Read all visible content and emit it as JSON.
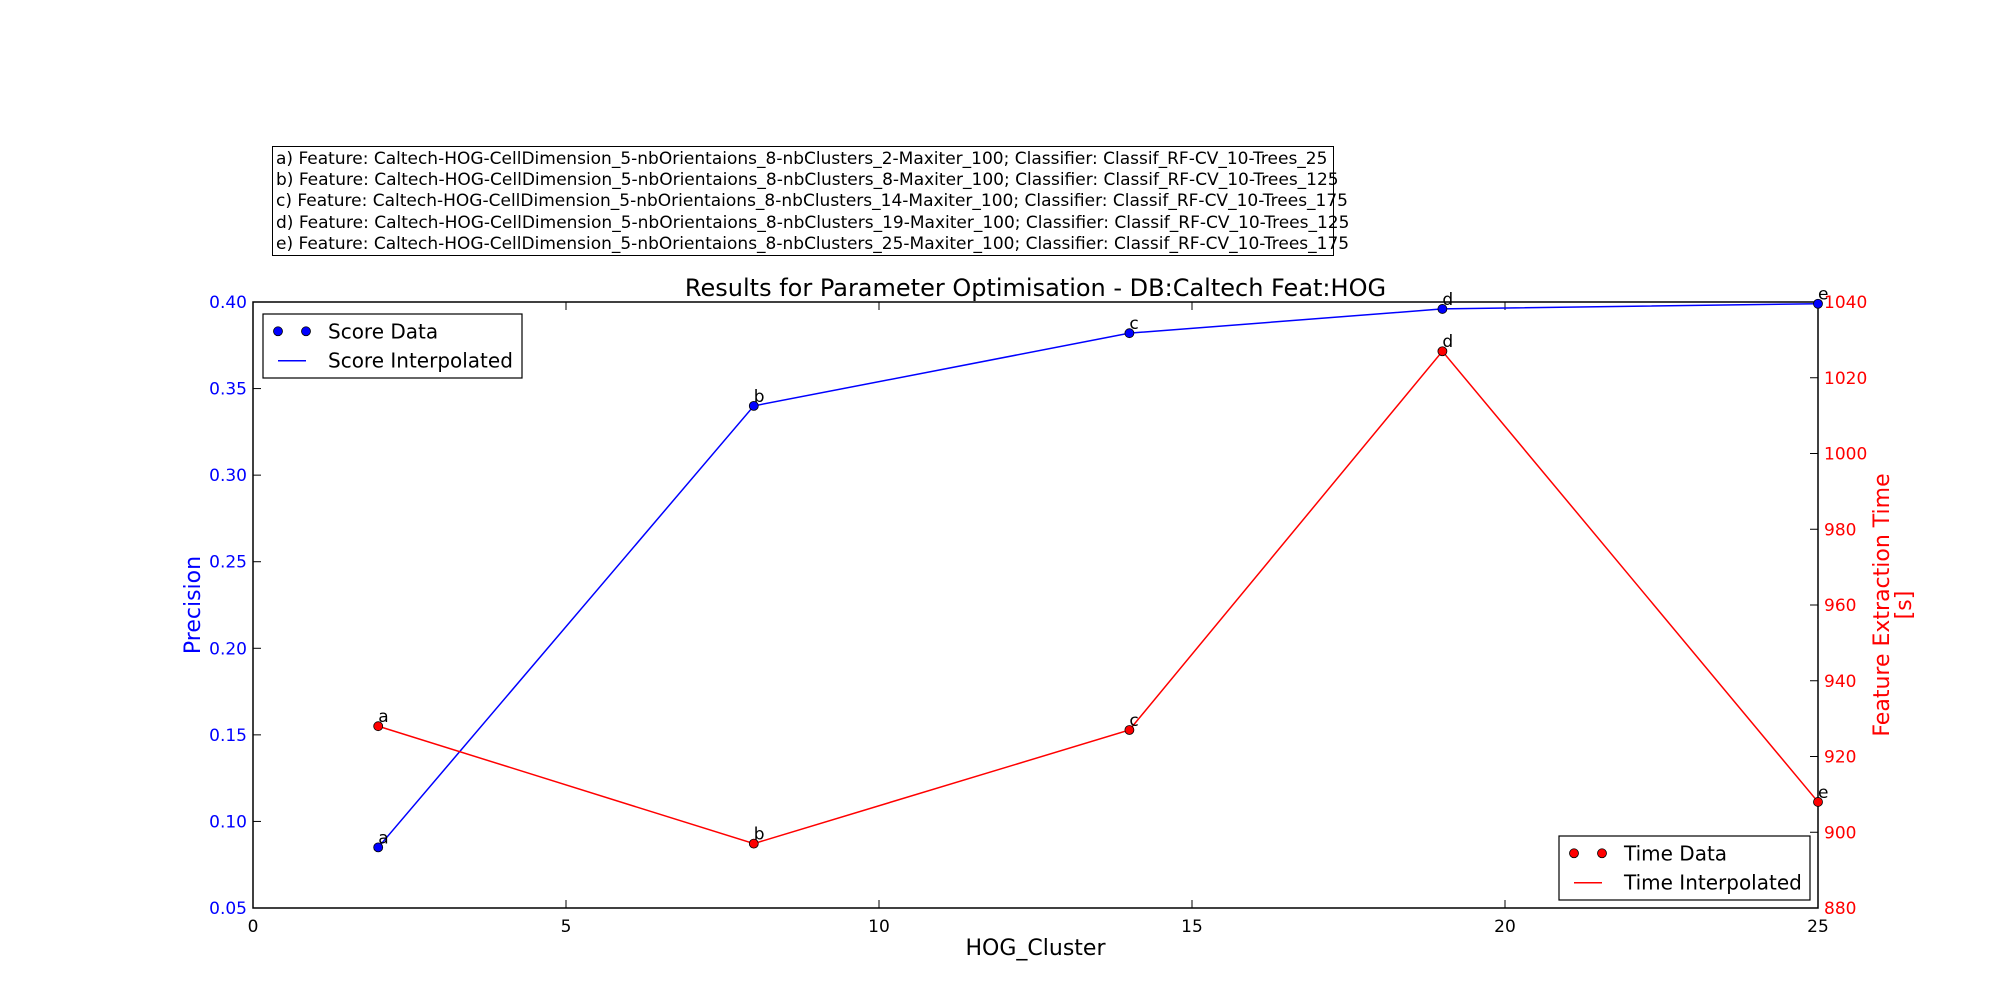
{
  "chart_data": {
    "type": "line",
    "title": "Results for Parameter Optimisation - DB:Caltech Feat:HOG",
    "xlabel": "HOG_Cluster",
    "ylabel_left": "Precision",
    "ylabel_right": "Feature Extraction Time [s]",
    "xlim": [
      0,
      25
    ],
    "ylim_left": [
      0.05,
      0.4
    ],
    "ylim_right": [
      880,
      1040
    ],
    "xticks": [
      "0",
      "5",
      "10",
      "15",
      "20",
      "25"
    ],
    "yticks_left": [
      "0.05",
      "0.10",
      "0.15",
      "0.20",
      "0.25",
      "0.30",
      "0.35",
      "0.40"
    ],
    "yticks_right": [
      "880",
      "900",
      "920",
      "940",
      "960",
      "980",
      "1000",
      "1020",
      "1040"
    ],
    "grid": false,
    "x": [
      2,
      8,
      14,
      19,
      25
    ],
    "point_labels": [
      "a",
      "b",
      "c",
      "d",
      "e"
    ],
    "series": [
      {
        "name": "Score",
        "axis": "left",
        "values": [
          0.085,
          0.34,
          0.382,
          0.396,
          0.399
        ],
        "color": "#0000ff"
      },
      {
        "name": "Time",
        "axis": "right",
        "values": [
          928,
          897,
          927,
          1027,
          908
        ],
        "color": "#ff0000"
      }
    ],
    "legends": [
      {
        "location": "upper left",
        "entries": [
          "Score Data",
          "Score Interpolated"
        ]
      },
      {
        "location": "lower right",
        "entries": [
          "Time Data",
          "Time Interpolated"
        ]
      }
    ],
    "notes": [
      "a) Feature: Caltech-HOG-CellDimension_5-nbOrientaions_8-nbClusters_2-Maxiter_100; Classifier: Classif_RF-CV_10-Trees_25",
      "b) Feature: Caltech-HOG-CellDimension_5-nbOrientaions_8-nbClusters_8-Maxiter_100; Classifier: Classif_RF-CV_10-Trees_125",
      "c) Feature: Caltech-HOG-CellDimension_5-nbOrientaions_8-nbClusters_14-Maxiter_100; Classifier: Classif_RF-CV_10-Trees_175",
      "d) Feature: Caltech-HOG-CellDimension_5-nbOrientaions_8-nbClusters_19-Maxiter_100; Classifier: Classif_RF-CV_10-Trees_125",
      "e) Feature: Caltech-HOG-CellDimension_5-nbOrientaions_8-nbClusters_25-Maxiter_100; Classifier: Classif_RF-CV_10-Trees_175"
    ]
  }
}
